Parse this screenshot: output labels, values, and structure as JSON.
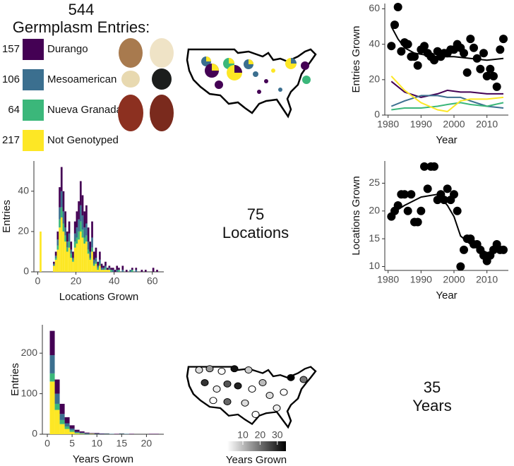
{
  "germplasm": {
    "total": 544,
    "title": "Germplasm Entries:",
    "groups": [
      {
        "count": 157,
        "name": "Durango",
        "color": "#440154"
      },
      {
        "count": 106,
        "name": "Mesoamerican",
        "color": "#3b6f8f"
      },
      {
        "count": 64,
        "name": "Nueva Granada",
        "color": "#3bb77a"
      },
      {
        "count": 217,
        "name": "Not Genotyped",
        "color": "#fde725"
      }
    ]
  },
  "locations_count": {
    "value": 75,
    "label": "Locations"
  },
  "years_count": {
    "value": 35,
    "label": "Years"
  },
  "years_map": {
    "colorbar_lim": [
      1,
      35
    ],
    "colorbar_ticks": [
      10,
      20,
      30
    ],
    "colorbar_label": "Years Grown"
  },
  "chart_data": [
    {
      "type": "line",
      "xlabel": "Year",
      "ylabel": "Entries Grown",
      "xlim": [
        1979,
        2016.5
      ],
      "xticks": [
        1980,
        1990,
        2000,
        2010
      ],
      "ylim": [
        0,
        63
      ],
      "yticks": [
        0,
        20,
        40,
        60
      ],
      "series": [
        {
          "mode": "markers",
          "color": "#000000",
          "x": [
            1981,
            1982,
            1983,
            1984,
            1985,
            1986,
            1987,
            1988,
            1989,
            1990,
            1991,
            1992,
            1993,
            1994,
            1995,
            1996,
            1997,
            1998,
            1999,
            2000,
            2001,
            2002,
            2003,
            2004,
            2005,
            2006,
            2007,
            2008,
            2009,
            2010,
            2011,
            2012,
            2013,
            2014,
            2015
          ],
          "values": [
            39,
            51,
            61,
            36,
            41,
            40,
            33,
            33,
            28,
            37,
            39,
            35,
            33,
            31,
            36,
            33,
            35,
            35,
            37,
            37,
            40,
            38,
            35,
            24,
            43,
            38,
            32,
            26,
            35,
            22,
            26,
            22,
            16,
            37,
            43
          ]
        },
        {
          "mode": "lines",
          "color": "#000000",
          "x": [
            1981,
            1983,
            1985,
            1988,
            1991,
            1995,
            2000,
            2005,
            2010,
            2015
          ],
          "values": [
            50,
            43,
            38,
            35,
            34,
            33,
            33,
            32,
            31,
            32
          ]
        },
        {
          "mode": "lines",
          "color": "#440154",
          "x": [
            1981,
            1985,
            1990,
            1995,
            1998,
            2002,
            2005,
            2010,
            2015
          ],
          "values": [
            19,
            13,
            10,
            12,
            14,
            13,
            13,
            12,
            12
          ]
        },
        {
          "mode": "lines",
          "color": "#3b6f8f",
          "x": [
            1981,
            1985,
            1990,
            1995,
            1998,
            2002,
            2005,
            2010,
            2015
          ],
          "values": [
            5,
            8,
            11,
            11,
            10,
            10,
            8,
            5,
            4
          ]
        },
        {
          "mode": "lines",
          "color": "#3bb77a",
          "x": [
            1981,
            1985,
            1990,
            1995,
            1998,
            2002,
            2005,
            2010,
            2015
          ],
          "values": [
            3,
            4,
            4,
            5,
            6,
            7,
            6,
            5,
            7
          ]
        },
        {
          "mode": "lines",
          "color": "#fde725",
          "x": [
            1981,
            1985,
            1990,
            1995,
            1998,
            2002,
            2005,
            2010,
            2015
          ],
          "values": [
            22,
            14,
            7,
            3,
            2,
            8,
            9,
            9,
            10
          ]
        }
      ]
    },
    {
      "type": "histogram",
      "xlabel": "Locations Grown",
      "ylabel": "Entries",
      "xlim": [
        -2,
        66
      ],
      "xticks": [
        0,
        20,
        40,
        60
      ],
      "ylim": [
        0,
        55
      ],
      "yticks": [
        0,
        20,
        40
      ],
      "bins": [
        0,
        1,
        2,
        3,
        4,
        5,
        6,
        7,
        8,
        9,
        10,
        11,
        12,
        13,
        14,
        15,
        16,
        17,
        18,
        19,
        20,
        21,
        22,
        23,
        24,
        25,
        26,
        27,
        28,
        29,
        30,
        31,
        32,
        33,
        34,
        35,
        36,
        37,
        38,
        39,
        40,
        41,
        42,
        43,
        44,
        45,
        46,
        47,
        48,
        49,
        50,
        51,
        52,
        53,
        54,
        55,
        56,
        57,
        58,
        59,
        60,
        61,
        62,
        63,
        64
      ],
      "series": [
        {
          "color": "#fde725",
          "values": [
            0,
            20,
            0,
            0,
            0,
            0,
            0,
            0,
            3,
            6,
            11,
            22,
            27,
            20,
            15,
            10,
            12,
            7,
            5,
            12,
            14,
            16,
            20,
            17,
            14,
            15,
            9,
            6,
            10,
            3,
            4,
            1,
            3,
            1,
            1,
            1,
            1,
            1,
            0,
            0,
            0,
            0,
            0,
            0,
            0,
            0,
            0,
            0,
            0,
            0,
            0,
            0,
            0,
            0,
            0,
            0,
            0,
            0,
            0,
            0,
            0,
            0,
            0,
            0
          ]
        },
        {
          "color": "#3bb77a",
          "values": [
            0,
            0,
            0,
            0,
            0,
            0,
            0,
            0,
            0,
            1,
            2,
            4,
            5,
            4,
            3,
            2,
            3,
            2,
            1,
            3,
            3,
            4,
            5,
            4,
            3,
            3,
            2,
            1,
            2,
            1,
            1,
            1,
            1,
            0,
            0,
            1,
            0,
            0,
            1,
            0,
            0,
            0,
            1,
            0,
            0,
            0,
            0,
            0,
            0,
            1,
            0,
            0,
            0,
            0,
            0,
            0,
            0,
            0,
            0,
            0,
            0,
            0,
            0,
            0
          ]
        },
        {
          "color": "#3b6f8f",
          "values": [
            0,
            0,
            0,
            0,
            0,
            0,
            0,
            0,
            1,
            1,
            3,
            6,
            8,
            6,
            4,
            3,
            4,
            2,
            1,
            4,
            5,
            6,
            8,
            7,
            5,
            6,
            4,
            3,
            5,
            2,
            2,
            1,
            2,
            1,
            1,
            1,
            0,
            1,
            0,
            1,
            0,
            1,
            0,
            0,
            1,
            0,
            0,
            0,
            1,
            0,
            0,
            1,
            0,
            0,
            0,
            0,
            0,
            0,
            0,
            0,
            0,
            0,
            0,
            0
          ]
        },
        {
          "color": "#440154",
          "values": [
            0,
            0,
            0,
            0,
            0,
            0,
            0,
            0,
            1,
            2,
            4,
            10,
            12,
            10,
            8,
            5,
            6,
            4,
            3,
            6,
            8,
            9,
            12,
            10,
            8,
            9,
            7,
            5,
            8,
            4,
            5,
            2,
            4,
            2,
            1,
            2,
            1,
            1,
            1,
            1,
            1,
            2,
            1,
            0,
            2,
            0,
            1,
            0,
            0,
            1,
            0,
            1,
            0,
            0,
            1,
            0,
            1,
            0,
            0,
            0,
            2,
            0,
            1,
            0
          ]
        }
      ]
    },
    {
      "type": "line",
      "xlabel": "Year",
      "ylabel": "Locations Grown",
      "xlim": [
        1979,
        2016.5
      ],
      "xticks": [
        1980,
        1990,
        2000,
        2010
      ],
      "ylim": [
        9.3,
        29
      ],
      "yticks": [
        10,
        15,
        20,
        25
      ],
      "series": [
        {
          "mode": "markers",
          "color": "#000000",
          "x": [
            1981,
            1982,
            1983,
            1984,
            1985,
            1986,
            1987,
            1988,
            1989,
            1990,
            1991,
            1992,
            1993,
            1994,
            1995,
            1996,
            1997,
            1998,
            1999,
            2000,
            2001,
            2002,
            2003,
            2004,
            2005,
            2006,
            2007,
            2008,
            2009,
            2010,
            2011,
            2012,
            2013,
            2014,
            2015
          ],
          "values": [
            19,
            20,
            21,
            23,
            23,
            20,
            23,
            18,
            18,
            20,
            28,
            24,
            28,
            28,
            22,
            23,
            22,
            24,
            22,
            23,
            20,
            10,
            13,
            15,
            15,
            14,
            14,
            13,
            12,
            11,
            12,
            13,
            14,
            13,
            13
          ]
        },
        {
          "mode": "lines",
          "color": "#000000",
          "x": [
            1981,
            1985,
            1990,
            1995,
            1998,
            2000,
            2002,
            2005,
            2010,
            2015
          ],
          "values": [
            19.5,
            21,
            22.5,
            23,
            21,
            19,
            15.5,
            14,
            12.5,
            13
          ]
        }
      ]
    },
    {
      "type": "histogram",
      "xlabel": "Years Grown",
      "ylabel": "Entries",
      "xlim": [
        -1,
        23.5
      ],
      "xticks": [
        0,
        5,
        10,
        15,
        20
      ],
      "ylim": [
        0,
        270
      ],
      "yticks": [
        0,
        100,
        200
      ],
      "bins": [
        0.5,
        1.5,
        2.5,
        3.5,
        4.5,
        5.5,
        6.5,
        7.5,
        8.5,
        9.5,
        10.5,
        11.5,
        12.5,
        13.5,
        14.5,
        15.5,
        16.5,
        17.5,
        18.5,
        19.5,
        20.5,
        21.5,
        22.5
      ],
      "series": [
        {
          "color": "#fde725",
          "values": [
            130,
            60,
            25,
            13,
            6,
            2,
            1,
            0,
            1,
            0,
            0,
            0,
            0,
            0,
            0,
            0,
            0,
            0,
            0,
            0,
            0,
            0
          ]
        },
        {
          "color": "#3bb77a",
          "values": [
            20,
            15,
            10,
            6,
            4,
            2,
            1,
            1,
            0,
            1,
            0,
            1,
            0,
            0,
            1,
            0,
            0,
            0,
            0,
            0,
            0,
            0
          ]
        },
        {
          "color": "#3b6f8f",
          "values": [
            45,
            25,
            15,
            8,
            4,
            2,
            2,
            1,
            1,
            0,
            1,
            0,
            1,
            0,
            0,
            1,
            0,
            0,
            0,
            0,
            0,
            0
          ]
        },
        {
          "color": "#440154",
          "values": [
            60,
            35,
            25,
            15,
            8,
            5,
            3,
            2,
            1,
            2,
            1,
            1,
            0,
            1,
            1,
            0,
            1,
            0,
            0,
            0,
            1,
            1
          ]
        }
      ]
    }
  ]
}
